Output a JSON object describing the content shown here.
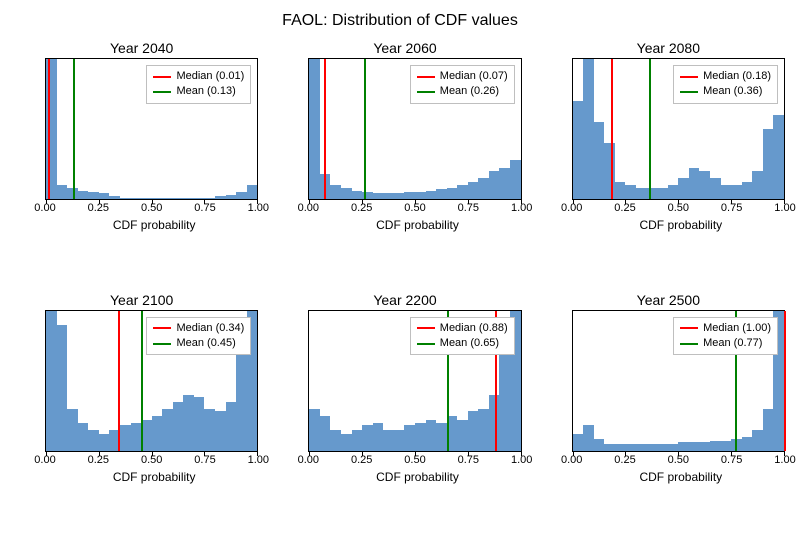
{
  "suptitle": "FAOL: Distribution of CDF values",
  "xlabel": "CDF probability",
  "xlim": [
    0,
    1
  ],
  "xticks": [
    0.0,
    0.25,
    0.5,
    0.75,
    1.0
  ],
  "xtick_labels": [
    "0.00",
    "0.25",
    "0.50",
    "0.75",
    "1.00"
  ],
  "bar_color": "#6699cc",
  "median_color": "#ff0000",
  "mean_color": "#008000",
  "background_color": "#ffffff",
  "border_color": "#000000",
  "legend_border_color": "#bfbfbf",
  "title_fontsize": 14,
  "suptitle_fontsize": 16,
  "label_fontsize": 12,
  "tick_fontsize": 11,
  "legend_fontsize": 11,
  "n_bins": 20,
  "panels": [
    {
      "title": "Year 2040",
      "median": 0.01,
      "mean": 0.13,
      "median_label": "Median (0.01)",
      "mean_label": "Mean (0.13)",
      "bars_rel": [
        1.0,
        0.1,
        0.08,
        0.06,
        0.05,
        0.04,
        0.02,
        0.01,
        0.01,
        0.01,
        0.01,
        0.01,
        0.01,
        0.01,
        0.01,
        0.01,
        0.02,
        0.03,
        0.05,
        0.1
      ]
    },
    {
      "title": "Year 2060",
      "median": 0.07,
      "mean": 0.26,
      "median_label": "Median (0.07)",
      "mean_label": "Mean (0.26)",
      "bars_rel": [
        1.0,
        0.18,
        0.1,
        0.08,
        0.06,
        0.05,
        0.04,
        0.04,
        0.04,
        0.05,
        0.05,
        0.06,
        0.07,
        0.08,
        0.1,
        0.12,
        0.15,
        0.2,
        0.22,
        0.28
      ]
    },
    {
      "title": "Year 2080",
      "median": 0.18,
      "mean": 0.36,
      "median_label": "Median (0.18)",
      "mean_label": "Mean (0.36)",
      "bars_rel": [
        0.7,
        1.0,
        0.55,
        0.4,
        0.12,
        0.1,
        0.08,
        0.08,
        0.08,
        0.1,
        0.15,
        0.22,
        0.2,
        0.15,
        0.1,
        0.1,
        0.12,
        0.2,
        0.5,
        0.6
      ]
    },
    {
      "title": "Year 2100",
      "median": 0.34,
      "mean": 0.45,
      "median_label": "Median (0.34)",
      "mean_label": "Mean (0.45)",
      "bars_rel": [
        1.0,
        0.9,
        0.3,
        0.2,
        0.15,
        0.12,
        0.15,
        0.18,
        0.2,
        0.22,
        0.25,
        0.3,
        0.35,
        0.4,
        0.38,
        0.3,
        0.28,
        0.35,
        0.7,
        1.0
      ]
    },
    {
      "title": "Year 2200",
      "median": 0.88,
      "mean": 0.65,
      "median_label": "Median (0.88)",
      "mean_label": "Mean (0.65)",
      "bars_rel": [
        0.3,
        0.25,
        0.15,
        0.12,
        0.15,
        0.18,
        0.2,
        0.15,
        0.15,
        0.18,
        0.2,
        0.22,
        0.2,
        0.25,
        0.22,
        0.28,
        0.3,
        0.4,
        0.7,
        1.0
      ]
    },
    {
      "title": "Year 2500",
      "median": 1.0,
      "mean": 0.77,
      "median_label": "Median (1.00)",
      "mean_label": "Mean (0.77)",
      "bars_rel": [
        0.12,
        0.18,
        0.08,
        0.05,
        0.05,
        0.05,
        0.05,
        0.05,
        0.05,
        0.05,
        0.06,
        0.06,
        0.06,
        0.07,
        0.07,
        0.08,
        0.1,
        0.15,
        0.3,
        1.0
      ]
    }
  ]
}
